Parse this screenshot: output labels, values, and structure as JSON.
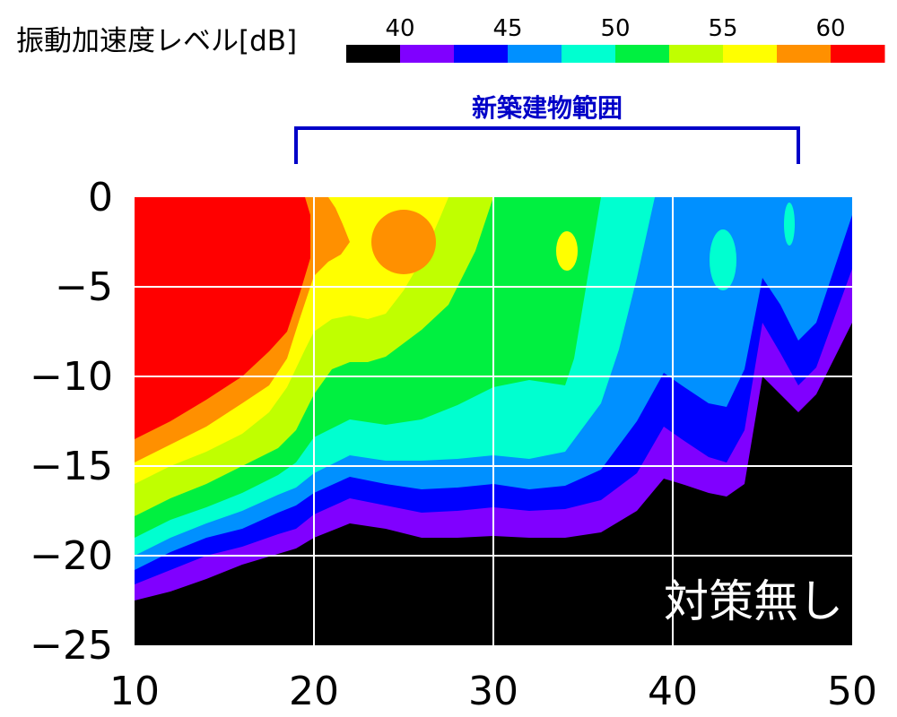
{
  "chart_data": {
    "type": "heatmap",
    "subtype": "filled-contour",
    "legend_title": "振動加速度レベル[dB]",
    "legend_ticks": [
      "40",
      "45",
      "50",
      "55",
      "60"
    ],
    "levels": [
      {
        "lower": null,
        "upper": 40,
        "color": "#000000"
      },
      {
        "lower": 40,
        "upper": 42.5,
        "color": "#8000ff"
      },
      {
        "lower": 42.5,
        "upper": 45,
        "color": "#0000ff"
      },
      {
        "lower": 45,
        "upper": 47.5,
        "color": "#0090ff"
      },
      {
        "lower": 47.5,
        "upper": 50,
        "color": "#00ffd0"
      },
      {
        "lower": 50,
        "upper": 52.5,
        "color": "#00f040"
      },
      {
        "lower": 52.5,
        "upper": 55,
        "color": "#c0ff00"
      },
      {
        "lower": 55,
        "upper": 57.5,
        "color": "#ffff00"
      },
      {
        "lower": 57.5,
        "upper": 60,
        "color": "#ff9000"
      },
      {
        "lower": 60,
        "upper": null,
        "color": "#ff0000"
      }
    ],
    "region_label": "新築建物範囲",
    "region_range": [
      19,
      47
    ],
    "annotation": "対策無し",
    "x_ticks": [
      "10",
      "20",
      "30",
      "40",
      "50"
    ],
    "y_ticks": [
      "0",
      "-5",
      "-10",
      "-15",
      "-20",
      "-25"
    ],
    "xlim": [
      10,
      50
    ],
    "ylim": [
      -25,
      0
    ],
    "grid": true,
    "contours": [
      {
        "level": 40,
        "x": [
          10,
          12,
          14,
          16,
          18,
          19,
          20,
          22,
          24,
          26,
          28,
          30,
          32,
          34,
          36,
          38,
          39.5,
          40.5,
          42,
          43,
          44,
          45,
          46,
          47,
          48,
          50
        ],
        "y": [
          -22.5,
          -22,
          -21.3,
          -20.5,
          -19.9,
          -19.6,
          -19,
          -18.2,
          -18.5,
          -19,
          -19,
          -18.9,
          -19,
          -19,
          -18.7,
          -17.5,
          -15.7,
          -16,
          -16.5,
          -16.7,
          -16,
          -10,
          -11,
          -12,
          -11,
          -7
        ]
      },
      {
        "level": 42.5,
        "x": [
          10,
          12,
          14,
          16,
          18,
          19,
          20,
          22,
          24,
          26,
          28,
          30,
          32,
          34,
          36,
          38,
          39.5,
          40.5,
          42,
          43,
          44,
          45,
          46,
          47,
          48,
          50
        ],
        "y": [
          -21.6,
          -20.8,
          -20,
          -19.5,
          -18.8,
          -18.5,
          -17.7,
          -16.8,
          -17.2,
          -17.6,
          -17.5,
          -17.3,
          -17.5,
          -17.4,
          -16.9,
          -15.4,
          -12.8,
          -13.5,
          -14.5,
          -14.8,
          -13,
          -7,
          -8.7,
          -10.5,
          -9.5,
          -4
        ]
      },
      {
        "level": 45,
        "x": [
          10,
          12,
          14,
          16,
          18,
          19,
          20,
          22,
          24,
          26,
          28,
          30,
          32,
          34,
          36,
          38,
          39.5,
          40.5,
          42,
          43,
          44,
          45,
          46,
          47,
          48,
          50
        ],
        "y": [
          -20.8,
          -19.8,
          -19,
          -18.5,
          -17.6,
          -17.2,
          -16.5,
          -15.6,
          -16,
          -16.3,
          -16.2,
          -16,
          -16.3,
          -16.1,
          -15.2,
          -12.5,
          -9.8,
          -10.5,
          -11.5,
          -11.7,
          -9.6,
          -4.5,
          -6,
          -8,
          -7,
          -1
        ]
      },
      {
        "level": 47.5,
        "x": [
          10,
          12,
          14,
          16,
          18,
          19,
          20,
          22,
          24,
          26,
          28,
          30,
          32,
          34,
          36,
          37,
          38,
          39
        ],
        "y": [
          -20,
          -19,
          -18.2,
          -17.5,
          -16.6,
          -16.2,
          -15.4,
          -14.4,
          -14.7,
          -14.7,
          -14.6,
          -14.4,
          -14.6,
          -14.2,
          -11.5,
          -8.5,
          -4.5,
          0
        ]
      },
      {
        "level": 50,
        "x": [
          10,
          12,
          14,
          16,
          18,
          19,
          20,
          22,
          24,
          26,
          28,
          30,
          32,
          34,
          34.5,
          35.5,
          36
        ],
        "y": [
          -19,
          -18,
          -17.3,
          -16.5,
          -15.5,
          -14.8,
          -13.4,
          -12.4,
          -12.7,
          -12.4,
          -11.6,
          -10.6,
          -10.2,
          -10.5,
          -9,
          -3,
          0
        ]
      },
      {
        "level": 52.5,
        "x": [
          10,
          12,
          14,
          16,
          18,
          19,
          20,
          21,
          22,
          23,
          24,
          26,
          27.5,
          29,
          30
        ],
        "y": [
          -17.8,
          -16.8,
          -16,
          -15,
          -14,
          -13,
          -11,
          -9.6,
          -9.2,
          -9.2,
          -8.9,
          -7.4,
          -6,
          -3,
          0
        ]
      },
      {
        "level": 55,
        "x": [
          10,
          12,
          14,
          16,
          17.5,
          18.5,
          19.5,
          20,
          21,
          22,
          23,
          24,
          25,
          26,
          27,
          27.5
        ],
        "y": [
          -16,
          -15,
          -14.2,
          -13.2,
          -12,
          -10.6,
          -8.5,
          -7.5,
          -6.8,
          -6.6,
          -6.8,
          -6.5,
          -5.2,
          -3.5,
          -1.2,
          0
        ]
      },
      {
        "level": 57.5,
        "x": [
          10,
          12,
          14,
          16,
          17.5,
          18.5,
          19.2,
          19.6,
          20,
          20.8,
          21.5,
          22,
          21.6,
          21.2,
          20.8
        ],
        "y": [
          -14.8,
          -13.8,
          -12.8,
          -11.5,
          -10.5,
          -9,
          -6.8,
          -5.6,
          -4.4,
          -3.6,
          -3.2,
          -2.5,
          -1.5,
          -0.6,
          0
        ]
      },
      {
        "level": 60,
        "x": [
          10,
          12,
          14,
          16,
          17.5,
          18.5,
          19.2,
          19.8,
          19.8,
          19.5
        ],
        "y": [
          -13.5,
          -12.5,
          -11.3,
          -10,
          -8.6,
          -7.5,
          -5.4,
          -3.4,
          -1,
          0
        ]
      }
    ]
  }
}
